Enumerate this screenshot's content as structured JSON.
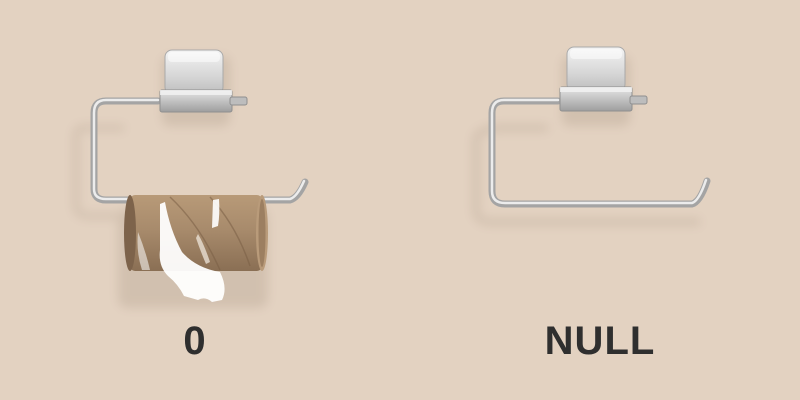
{
  "scene": {
    "background_color": "#e3d2c1",
    "chrome_color": "#cfcfcf",
    "cardboard_color": "#a88b6c",
    "label_color": "#2f2f2f"
  },
  "left_panel": {
    "label": "0",
    "icon": "toilet-paper-holder-with-empty-roll-icon"
  },
  "right_panel": {
    "label": "NULL",
    "icon": "empty-toilet-paper-holder-icon"
  }
}
